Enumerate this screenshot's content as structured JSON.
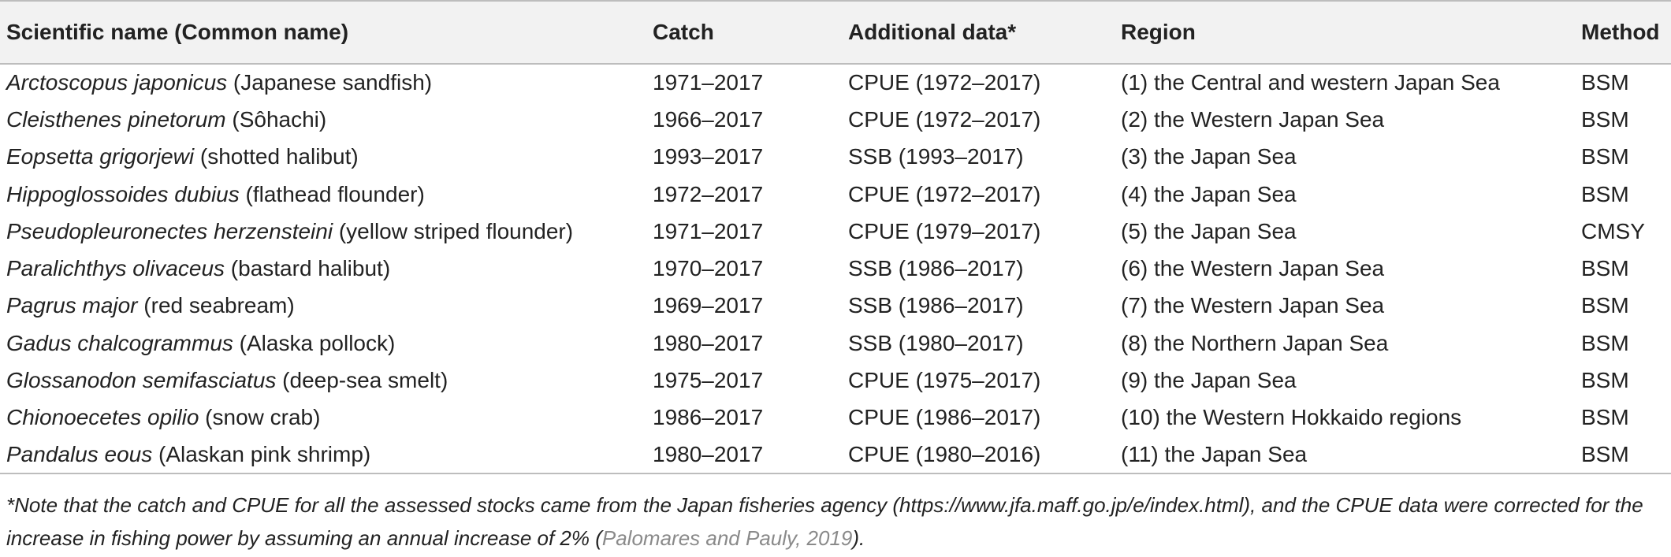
{
  "table": {
    "headers": [
      "Scientific name (Common name)",
      "Catch",
      "Additional data*",
      "Region",
      "Method"
    ],
    "rows": [
      {
        "sci": "Arctoscopus japonicus",
        "common": " (Japanese sandfish)",
        "catch": "1971–2017",
        "additional": "CPUE (1972–2017)",
        "region": "(1) the Central and western Japan Sea",
        "method": "BSM"
      },
      {
        "sci": "Cleisthenes pinetorum",
        "common": " (Sôhachi)",
        "catch": "1966–2017",
        "additional": "CPUE (1972–2017)",
        "region": "(2) the Western Japan Sea",
        "method": "BSM"
      },
      {
        "sci": "Eopsetta grigorjewi",
        "common": " (shotted halibut)",
        "catch": "1993–2017",
        "additional": "SSB (1993–2017)",
        "region": "(3) the Japan Sea",
        "method": "BSM"
      },
      {
        "sci": "Hippoglossoides dubius",
        "common": " (flathead flounder)",
        "catch": "1972–2017",
        "additional": "CPUE (1972–2017)",
        "region": "(4) the Japan Sea",
        "method": "BSM"
      },
      {
        "sci": "Pseudopleuronectes herzensteini",
        "common": " (yellow striped flounder)",
        "catch": "1971–2017",
        "additional": "CPUE (1979–2017)",
        "region": "(5) the Japan Sea",
        "method": "CMSY"
      },
      {
        "sci": "Paralichthys olivaceus",
        "common": " (bastard halibut)",
        "catch": "1970–2017",
        "additional": "SSB (1986–2017)",
        "region": "(6) the Western Japan Sea",
        "method": "BSM"
      },
      {
        "sci": "Pagrus major",
        "common": " (red seabream)",
        "catch": "1969–2017",
        "additional": "SSB (1986–2017)",
        "region": "(7) the Western Japan Sea",
        "method": "BSM"
      },
      {
        "sci": "Gadus chalcogrammus",
        "common": " (Alaska pollock)",
        "catch": "1980–2017",
        "additional": "SSB (1980–2017)",
        "region": "(8) the Northern Japan Sea",
        "method": "BSM"
      },
      {
        "sci": "Glossanodon semifasciatus",
        "common": " (deep-sea smelt)",
        "catch": "1975–2017",
        "additional": "CPUE (1975–2017)",
        "region": "(9) the Japan Sea",
        "method": "BSM"
      },
      {
        "sci": "Chionoecetes opilio",
        "common": " (snow crab)",
        "catch": "1986–2017",
        "additional": "CPUE (1986–2017)",
        "region": "(10) the Western Hokkaido regions",
        "method": "BSM"
      },
      {
        "sci": "Pandalus eous",
        "common": " (Alaskan pink shrimp)",
        "catch": "1980–2017",
        "additional": "CPUE (1980–2016)",
        "region": "(11) the Japan Sea",
        "method": "BSM"
      }
    ]
  },
  "footnote": {
    "text": "*Note that the catch and CPUE for all the assessed stocks came from the Japan fisheries agency (https://www.jfa.maff.go.jp/e/index.html), and the CPUE data were corrected for the increase in fishing power by assuming an annual increase of 2% (",
    "citation": "Palomares and Pauly, 2019",
    "end": ")."
  },
  "colors": {
    "header_bg": "#f2f2f2",
    "rule": "#bdbdbd",
    "text": "#222222",
    "citation": "#8a8a8a"
  }
}
